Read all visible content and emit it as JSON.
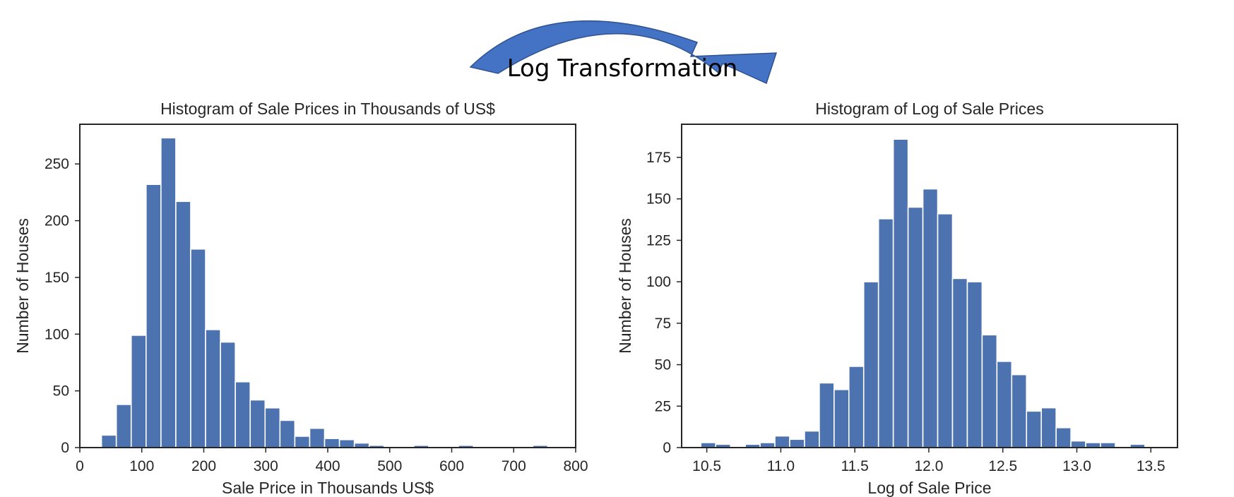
{
  "colors": {
    "bar": "#4c72b0",
    "arrow": "#4472c4",
    "arrow_outline": "#2f528f",
    "axes": "#262626"
  },
  "annotation": {
    "text": "Log Transformation",
    "icon": "curved-arrow-icon"
  },
  "chart_data": [
    {
      "type": "bar",
      "title": "Histogram of Sale Prices in Thousands of US$",
      "xlabel": "Sale Price in Thousands US$",
      "ylabel": "Number of Houses",
      "xlim": [
        0,
        800
      ],
      "ylim": [
        0,
        285
      ],
      "xticks": [
        0,
        100,
        200,
        300,
        400,
        500,
        600,
        700,
        800
      ],
      "yticks": [
        0,
        50,
        100,
        150,
        200,
        250
      ],
      "grid": false,
      "bins": {
        "start": 34.9,
        "width": 24.0,
        "values": [
          11,
          38,
          99,
          232,
          273,
          217,
          175,
          104,
          93,
          58,
          42,
          35,
          24,
          10,
          17,
          8,
          7,
          4,
          2,
          1,
          0,
          2,
          0,
          0,
          2,
          0,
          0,
          0,
          0,
          2
        ]
      }
    },
    {
      "type": "bar",
      "title": "Histogram of Log of Sale Prices",
      "xlabel": "Log of Sale Price",
      "ylabel": "Number of Houses",
      "xlim": [
        10.33,
        13.68
      ],
      "ylim": [
        0,
        195
      ],
      "xticks": [
        10.5,
        11.0,
        11.5,
        12.0,
        12.5,
        13.0,
        13.5
      ],
      "xtick_labels": [
        "10.5",
        "11.0",
        "11.5",
        "12.0",
        "12.5",
        "13.0",
        "13.5"
      ],
      "yticks": [
        0,
        25,
        50,
        75,
        100,
        125,
        150,
        175
      ],
      "grid": false,
      "bins": {
        "start": 10.46,
        "width": 0.1,
        "values": [
          3,
          2,
          0,
          2,
          3,
          7,
          5,
          10,
          39,
          35,
          49,
          100,
          138,
          186,
          145,
          156,
          141,
          102,
          100,
          68,
          52,
          44,
          22,
          24,
          12,
          4,
          3,
          3,
          0,
          2
        ]
      }
    }
  ]
}
